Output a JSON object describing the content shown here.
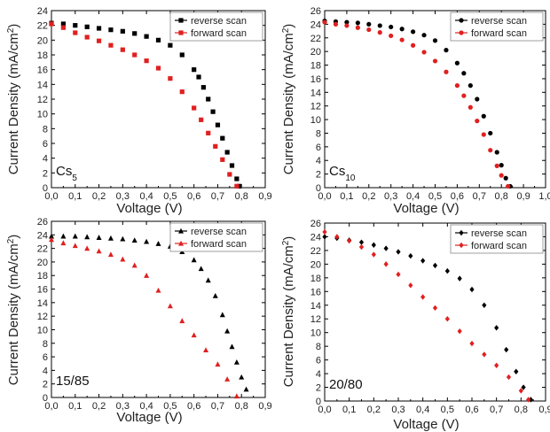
{
  "chart_data": [
    {
      "type": "scatter",
      "panel_label": "Cs",
      "panel_label_sub": "5",
      "xlabel": "Voltage (V)",
      "ylabel_main": "Current Density (mA/cm",
      "ylabel_sup": "2",
      "ylabel_end": ")",
      "xlim": [
        0.0,
        0.9
      ],
      "ylim": [
        0,
        24
      ],
      "xticks": [
        "0,0",
        "0,1",
        "0,2",
        "0,3",
        "0,4",
        "0,5",
        "0,6",
        "0,7",
        "0,8",
        "0,9"
      ],
      "yticks": [
        "0",
        "2",
        "4",
        "6",
        "8",
        "10",
        "12",
        "14",
        "16",
        "18",
        "20",
        "22",
        "24"
      ],
      "legend_position": "top-right",
      "series": [
        {
          "name": "reverse scan",
          "color": "#000000",
          "marker": "square",
          "x": [
            0.0,
            0.05,
            0.1,
            0.15,
            0.2,
            0.25,
            0.3,
            0.35,
            0.4,
            0.45,
            0.5,
            0.55,
            0.6,
            0.62,
            0.64,
            0.66,
            0.68,
            0.7,
            0.72,
            0.74,
            0.76,
            0.78,
            0.79
          ],
          "y": [
            22.3,
            22.2,
            22.0,
            21.8,
            21.6,
            21.4,
            21.2,
            20.9,
            20.5,
            20.0,
            19.3,
            18.0,
            16.0,
            15.0,
            13.6,
            12.0,
            10.3,
            8.5,
            6.7,
            4.8,
            3.0,
            1.2,
            0.2
          ]
        },
        {
          "name": "forward scan",
          "color": "#e02020",
          "marker": "square",
          "x": [
            0.0,
            0.05,
            0.1,
            0.15,
            0.2,
            0.25,
            0.3,
            0.35,
            0.4,
            0.45,
            0.5,
            0.55,
            0.6,
            0.63,
            0.66,
            0.69,
            0.72,
            0.75,
            0.78
          ],
          "y": [
            22.2,
            21.7,
            21.0,
            20.4,
            19.9,
            19.3,
            18.7,
            18.0,
            17.2,
            16.2,
            14.8,
            13.0,
            10.8,
            9.2,
            7.4,
            5.6,
            3.8,
            1.8,
            0.2
          ]
        }
      ]
    },
    {
      "type": "scatter",
      "panel_label": "Cs",
      "panel_label_sub": "10",
      "xlabel": "Voltage (V)",
      "ylabel_main": "Current Density (mA/cm",
      "ylabel_sup": "2",
      "ylabel_end": ")",
      "xlim": [
        0.0,
        1.0
      ],
      "ylim": [
        0,
        26
      ],
      "xticks": [
        "0,0",
        "0,1",
        "0,2",
        "0,3",
        "0,4",
        "0,5",
        "0,6",
        "0,7",
        "0,8",
        "0,9",
        "1,0"
      ],
      "yticks": [
        "0",
        "2",
        "4",
        "6",
        "8",
        "10",
        "12",
        "14",
        "16",
        "18",
        "20",
        "22",
        "24",
        "26"
      ],
      "legend_position": "top-right",
      "series": [
        {
          "name": "reverse scan",
          "color": "#000000",
          "marker": "circle",
          "x": [
            0.0,
            0.05,
            0.1,
            0.15,
            0.2,
            0.25,
            0.3,
            0.35,
            0.4,
            0.45,
            0.5,
            0.55,
            0.6,
            0.63,
            0.66,
            0.69,
            0.72,
            0.75,
            0.78,
            0.8,
            0.82,
            0.84
          ],
          "y": [
            24.5,
            24.4,
            24.3,
            24.2,
            24.0,
            23.8,
            23.6,
            23.3,
            22.9,
            22.4,
            21.6,
            20.2,
            18.3,
            16.8,
            15.0,
            13.0,
            10.5,
            8.0,
            5.2,
            3.3,
            1.4,
            0.2
          ]
        },
        {
          "name": "forward scan",
          "color": "#e02020",
          "marker": "circle",
          "x": [
            0.0,
            0.05,
            0.1,
            0.15,
            0.2,
            0.25,
            0.3,
            0.35,
            0.4,
            0.45,
            0.5,
            0.55,
            0.6,
            0.63,
            0.66,
            0.69,
            0.72,
            0.75,
            0.78,
            0.8,
            0.83
          ],
          "y": [
            24.3,
            24.0,
            23.8,
            23.5,
            23.2,
            22.8,
            22.3,
            21.7,
            20.9,
            19.9,
            18.6,
            17.0,
            15.0,
            13.5,
            11.8,
            9.8,
            7.8,
            5.5,
            3.2,
            1.8,
            0.2
          ]
        }
      ]
    },
    {
      "type": "scatter",
      "panel_label": "15/85",
      "panel_label_sub": "",
      "xlabel": "Voltage (V)",
      "ylabel_main": "Current Density (mA/cm",
      "ylabel_sup": "2",
      "ylabel_end": ")",
      "xlim": [
        0.0,
        0.9
      ],
      "ylim": [
        0,
        26
      ],
      "xticks": [
        "0,0",
        "0,1",
        "0,2",
        "0,3",
        "0,4",
        "0,5",
        "0,6",
        "0,7",
        "0,8",
        "0,9"
      ],
      "yticks": [
        "0",
        "2",
        "4",
        "6",
        "8",
        "10",
        "12",
        "14",
        "16",
        "18",
        "20",
        "22",
        "24",
        "26"
      ],
      "legend_position": "top-right",
      "series": [
        {
          "name": "reverse scan",
          "color": "#000000",
          "marker": "triangle",
          "x": [
            0.0,
            0.05,
            0.1,
            0.15,
            0.2,
            0.25,
            0.3,
            0.35,
            0.4,
            0.45,
            0.5,
            0.55,
            0.6,
            0.63,
            0.66,
            0.69,
            0.72,
            0.74,
            0.76,
            0.78,
            0.8,
            0.82
          ],
          "y": [
            23.8,
            23.8,
            23.8,
            23.7,
            23.6,
            23.5,
            23.4,
            23.2,
            23.0,
            22.7,
            22.3,
            21.5,
            20.3,
            19.0,
            17.3,
            15.0,
            12.2,
            9.8,
            7.5,
            5.2,
            3.0,
            1.2
          ]
        },
        {
          "name": "forward scan",
          "color": "#e02020",
          "marker": "triangle",
          "x": [
            0.0,
            0.05,
            0.1,
            0.15,
            0.2,
            0.25,
            0.3,
            0.35,
            0.4,
            0.45,
            0.5,
            0.55,
            0.6,
            0.65,
            0.7,
            0.74,
            0.78
          ],
          "y": [
            23.3,
            22.8,
            22.4,
            22.0,
            21.6,
            21.1,
            20.4,
            19.5,
            18.0,
            15.8,
            13.5,
            11.3,
            9.2,
            7.0,
            4.9,
            2.7,
            0.2
          ]
        }
      ]
    },
    {
      "type": "scatter",
      "panel_label": "20/80",
      "panel_label_sub": "",
      "xlabel": "Voltage (V)",
      "ylabel_main": "Current Density (mA/cm",
      "ylabel_sup": "2",
      "ylabel_end": ")",
      "xlim": [
        0.0,
        0.9
      ],
      "ylim": [
        0,
        26
      ],
      "xticks": [
        "0,0",
        "0,1",
        "0,2",
        "0,3",
        "0,4",
        "0,5",
        "0,6",
        "0,7",
        "0,8",
        "0,9"
      ],
      "yticks": [
        "0",
        "2",
        "4",
        "6",
        "8",
        "10",
        "12",
        "14",
        "16",
        "18",
        "20",
        "22",
        "24",
        "26"
      ],
      "legend_position": "top-right",
      "series": [
        {
          "name": "reverse scan",
          "color": "#000000",
          "marker": "diamond",
          "x": [
            0.0,
            0.05,
            0.1,
            0.15,
            0.2,
            0.25,
            0.3,
            0.35,
            0.4,
            0.45,
            0.5,
            0.55,
            0.6,
            0.65,
            0.7,
            0.74,
            0.78,
            0.81,
            0.84
          ],
          "y": [
            24.0,
            23.8,
            23.5,
            23.2,
            22.8,
            22.3,
            21.8,
            21.2,
            20.5,
            19.8,
            19.0,
            17.9,
            16.3,
            14.0,
            10.7,
            7.5,
            4.3,
            2.0,
            0.2
          ]
        },
        {
          "name": "forward scan",
          "color": "#e02020",
          "marker": "diamond",
          "x": [
            0.0,
            0.05,
            0.1,
            0.15,
            0.2,
            0.25,
            0.3,
            0.35,
            0.4,
            0.45,
            0.5,
            0.55,
            0.6,
            0.65,
            0.7,
            0.75,
            0.8,
            0.83
          ],
          "y": [
            24.7,
            24.0,
            23.4,
            22.5,
            21.4,
            20.0,
            18.5,
            16.9,
            15.2,
            13.6,
            12.0,
            10.2,
            8.4,
            6.8,
            5.2,
            3.5,
            1.5,
            0.2
          ]
        }
      ]
    }
  ]
}
